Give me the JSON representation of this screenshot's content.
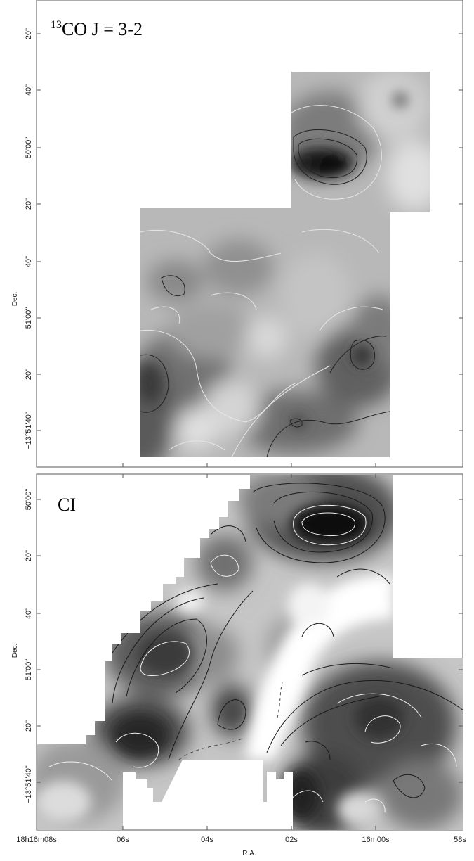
{
  "panels": [
    {
      "id": "top",
      "title_sup": "13",
      "title_main": "CO  J = 3-2",
      "dec_ticks": [
        "20\"",
        "40\"",
        "50'00\"",
        "20\"",
        "40\"",
        "51'00\"",
        "20\"",
        "−13°51'40\""
      ],
      "ylabel": "Dec."
    },
    {
      "id": "bottom",
      "title_main": "CI",
      "dec_ticks": [
        "50'00\"",
        "20\"",
        "40\"",
        "51'00\"",
        "20\"",
        "−13°51'40\""
      ],
      "ylabel": "Dec."
    }
  ],
  "ra_ticks": [
    "18h16m08s",
    "06s",
    "04s",
    "02s",
    "16m00s",
    "58s"
  ],
  "xlabel": "R.A."
}
